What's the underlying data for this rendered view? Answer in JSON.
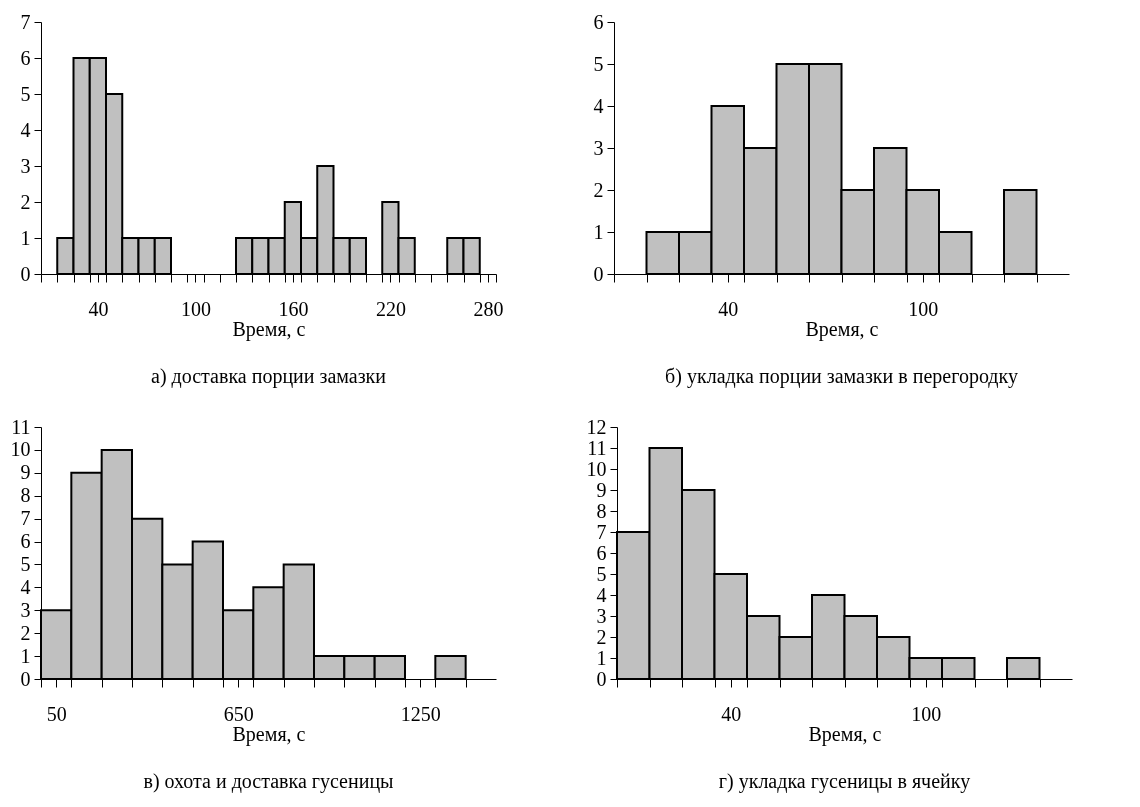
{
  "chart_data": [
    {
      "type": "histogram",
      "title": "а) доставка порции замазки",
      "xlabel": "Время, с",
      "color": "#c0c0c0",
      "bins": [
        5,
        15,
        25,
        35,
        45,
        55,
        65,
        75,
        85,
        95,
        105,
        115,
        125,
        135,
        145,
        155,
        165,
        175,
        185,
        195,
        205,
        215,
        225,
        235,
        245,
        255,
        265,
        275,
        285
      ],
      "values": [
        0,
        1,
        6,
        6,
        5,
        1,
        1,
        1,
        0,
        0,
        0,
        0,
        1,
        1,
        1,
        2,
        1,
        3,
        1,
        1,
        0,
        2,
        1,
        0,
        0,
        1,
        1,
        0
      ],
      "xlim": [
        5,
        285
      ],
      "ylim": [
        0,
        7
      ],
      "yticks": [
        0,
        1,
        2,
        3,
        4,
        5,
        6,
        7
      ],
      "xticks": [
        {
          "value": 5,
          "label": null
        },
        {
          "value": 15,
          "label": null
        },
        {
          "value": 25,
          "label": null
        },
        {
          "value": 35,
          "label": null
        },
        40,
        {
          "value": 45,
          "label": null
        },
        {
          "value": 55,
          "label": null
        },
        {
          "value": 65,
          "label": null
        },
        {
          "value": 75,
          "label": null
        },
        {
          "value": 85,
          "label": null
        },
        {
          "value": 95,
          "label": null
        },
        100,
        {
          "value": 105,
          "label": null
        },
        {
          "value": 115,
          "label": null
        },
        {
          "value": 125,
          "label": null
        },
        {
          "value": 135,
          "label": null
        },
        {
          "value": 145,
          "label": null
        },
        {
          "value": 155,
          "label": null
        },
        160,
        {
          "value": 165,
          "label": null
        },
        {
          "value": 175,
          "label": null
        },
        {
          "value": 185,
          "label": null
        },
        {
          "value": 195,
          "label": null
        },
        {
          "value": 205,
          "label": null
        },
        {
          "value": 215,
          "label": null
        },
        220,
        {
          "value": 225,
          "label": null
        },
        {
          "value": 235,
          "label": null
        },
        {
          "value": 245,
          "label": null
        },
        {
          "value": 255,
          "label": null
        },
        {
          "value": 265,
          "label": null
        },
        {
          "value": 275,
          "label": null
        },
        280,
        {
          "value": 285,
          "label": null
        }
      ]
    },
    {
      "type": "histogram",
      "title": "б) укладка порции замазки в перегородку",
      "xlabel": "Время, с",
      "color": "#c0c0c0",
      "bins": [
        5,
        15,
        25,
        35,
        45,
        55,
        65,
        75,
        85,
        95,
        105,
        115,
        125,
        135
      ],
      "values": [
        0,
        1,
        1,
        4,
        3,
        5,
        5,
        2,
        3,
        2,
        1,
        0,
        2
      ],
      "xlim": [
        5,
        145
      ],
      "ylim": [
        0,
        6
      ],
      "yticks": [
        0,
        1,
        2,
        3,
        4,
        5,
        6
      ],
      "xticks": [
        {
          "value": 5,
          "label": null
        },
        {
          "value": 15,
          "label": null
        },
        {
          "value": 25,
          "label": null
        },
        {
          "value": 35,
          "label": null
        },
        40,
        {
          "value": 45,
          "label": null
        },
        {
          "value": 55,
          "label": null
        },
        {
          "value": 65,
          "label": null
        },
        {
          "value": 75,
          "label": null
        },
        {
          "value": 85,
          "label": null
        },
        {
          "value": 95,
          "label": null
        },
        100,
        {
          "value": 105,
          "label": null
        },
        {
          "value": 115,
          "label": null
        },
        {
          "value": 125,
          "label": null
        },
        {
          "value": 135,
          "label": null
        }
      ]
    },
    {
      "type": "histogram",
      "title": "в) охота и доставка гусеницы",
      "xlabel": "Время, с",
      "color": "#c0c0c0",
      "bins": [
        0,
        100,
        200,
        300,
        400,
        500,
        600,
        700,
        800,
        900,
        1000,
        1100,
        1200,
        1300,
        1400
      ],
      "values": [
        3,
        9,
        10,
        7,
        5,
        6,
        3,
        4,
        5,
        1,
        1,
        1,
        0,
        1
      ],
      "xlim": [
        0,
        1500
      ],
      "ylim": [
        0,
        11
      ],
      "yticks": [
        0,
        1,
        2,
        3,
        4,
        5,
        6,
        7,
        8,
        9,
        10,
        11
      ],
      "xticks": [
        {
          "value": 0,
          "label": null
        },
        50,
        {
          "value": 100,
          "label": null
        },
        {
          "value": 200,
          "label": null
        },
        {
          "value": 300,
          "label": null
        },
        {
          "value": 400,
          "label": null
        },
        {
          "value": 500,
          "label": null
        },
        {
          "value": 600,
          "label": null
        },
        650,
        {
          "value": 700,
          "label": null
        },
        {
          "value": 800,
          "label": null
        },
        {
          "value": 900,
          "label": null
        },
        {
          "value": 1000,
          "label": null
        },
        {
          "value": 1100,
          "label": null
        },
        {
          "value": 1200,
          "label": null
        },
        1250,
        {
          "value": 1300,
          "label": null
        },
        {
          "value": 1400,
          "label": null
        }
      ]
    },
    {
      "type": "histogram",
      "title": "г) укладка гусеницы в ячейку",
      "xlabel": "Время, с",
      "color": "#c0c0c0",
      "bins": [
        5,
        15,
        25,
        35,
        45,
        55,
        65,
        75,
        85,
        95,
        105,
        115,
        125,
        135
      ],
      "values": [
        7,
        11,
        9,
        5,
        3,
        2,
        4,
        3,
        2,
        1,
        1,
        0,
        1
      ],
      "xlim": [
        5,
        145
      ],
      "ylim": [
        0,
        12
      ],
      "yticks": [
        0,
        1,
        2,
        3,
        4,
        5,
        6,
        7,
        8,
        9,
        10,
        11,
        12
      ],
      "xticks": [
        {
          "value": 5,
          "label": null
        },
        {
          "value": 15,
          "label": null
        },
        {
          "value": 25,
          "label": null
        },
        {
          "value": 35,
          "label": null
        },
        40,
        {
          "value": 45,
          "label": null
        },
        {
          "value": 55,
          "label": null
        },
        {
          "value": 65,
          "label": null
        },
        {
          "value": 75,
          "label": null
        },
        {
          "value": 85,
          "label": null
        },
        {
          "value": 95,
          "label": null
        },
        100,
        {
          "value": 105,
          "label": null
        },
        {
          "value": 115,
          "label": null
        },
        {
          "value": 125,
          "label": null
        },
        {
          "value": 135,
          "label": null
        }
      ]
    }
  ]
}
